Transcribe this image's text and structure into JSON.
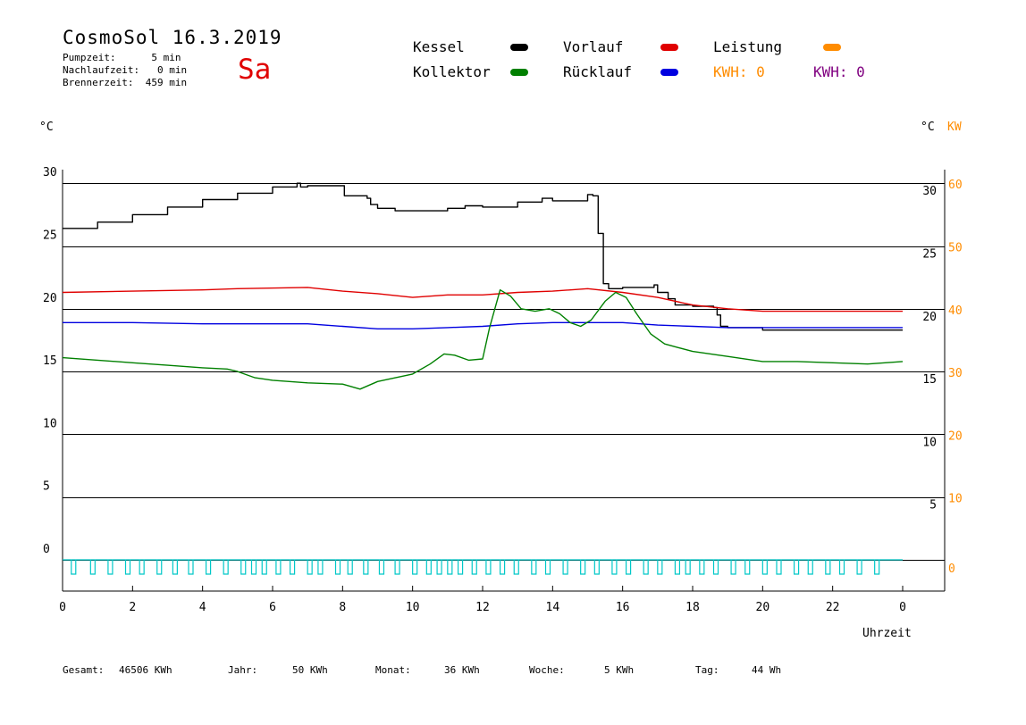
{
  "header": {
    "title": "CosmoSol 16.3.2019",
    "weekday": "Sa",
    "pumpzeit": "Pumpzeit:      5 min",
    "nachlaufzeit": "Nachlaufzeit:   0 min",
    "brennerzeit": "Brennerzeit:  459 min"
  },
  "legend": {
    "kessel": "Kessel",
    "kollektor": "Kollektor",
    "vorlauf": "Vorlauf",
    "ruecklauf": "Rücklauf",
    "leistung": "Leistung",
    "kwh1": "KWH: 0",
    "kwh2": "KWH: 0",
    "colors": {
      "kessel": "#000000",
      "kollektor": "#008000",
      "vorlauf": "#e00000",
      "ruecklauf": "#0000e0",
      "leistung": "#ff8c00",
      "kwh1": "#ff8c00",
      "kwh2": "#800080",
      "pump": "#00c8c8"
    }
  },
  "axes": {
    "left_unit": "°C",
    "right_unit": "°C",
    "right_unit2": "KW",
    "xlabel": "Uhrzeit"
  },
  "footer": {
    "gesamt_label": "Gesamt:",
    "gesamt_value": "46506 KWh",
    "jahr_label": "Jahr:",
    "jahr_value": "50 KWh",
    "monat_label": "Monat:",
    "monat_value": "36 KWh",
    "woche_label": "Woche:",
    "woche_value": "5 KWh",
    "tag_label": "Tag:",
    "tag_value": "44 Wh"
  },
  "chart_data": {
    "type": "line",
    "xlabel": "Uhrzeit",
    "ylabel": "°C",
    "xlim": [
      0,
      24
    ],
    "ylim": [
      0,
      30
    ],
    "y2lim": [
      0,
      60
    ],
    "y2label": "KW",
    "x_ticks": [
      "0",
      "2",
      "4",
      "6",
      "8",
      "10",
      "12",
      "14",
      "16",
      "18",
      "20",
      "22",
      "0"
    ],
    "y_ticks_left": [
      "0",
      "5",
      "10",
      "15",
      "20",
      "25",
      "30"
    ],
    "y_ticks_right": [
      "5",
      "10",
      "15",
      "20",
      "25",
      "30"
    ],
    "y2_ticks": [
      "0",
      "10",
      "20",
      "30",
      "40",
      "50",
      "60"
    ],
    "grid": true,
    "series": [
      {
        "name": "Kessel",
        "color": "#000000",
        "step": true,
        "points": [
          [
            0,
            26.4
          ],
          [
            1,
            26.9
          ],
          [
            2,
            27.5
          ],
          [
            3,
            28.1
          ],
          [
            4,
            28.7
          ],
          [
            5,
            29.2
          ],
          [
            6,
            29.7
          ],
          [
            6.7,
            30.0
          ],
          [
            6.8,
            29.7
          ],
          [
            7,
            29.8
          ],
          [
            8,
            29.8
          ],
          [
            8.05,
            29.0
          ],
          [
            8.7,
            28.8
          ],
          [
            8.8,
            28.3
          ],
          [
            9,
            28.0
          ],
          [
            9.5,
            27.8
          ],
          [
            10,
            27.8
          ],
          [
            11,
            28.0
          ],
          [
            11.5,
            28.2
          ],
          [
            12,
            28.1
          ],
          [
            13,
            28.5
          ],
          [
            13.7,
            28.8
          ],
          [
            14,
            28.6
          ],
          [
            15,
            29.1
          ],
          [
            15.15,
            29.0
          ],
          [
            15.3,
            26.0
          ],
          [
            15.45,
            22.0
          ],
          [
            15.6,
            21.6
          ],
          [
            16,
            21.7
          ],
          [
            16.9,
            21.9
          ],
          [
            17.0,
            21.3
          ],
          [
            17.3,
            20.8
          ],
          [
            17.5,
            20.3
          ],
          [
            18,
            20.2
          ],
          [
            18.6,
            20.1
          ],
          [
            18.7,
            19.5
          ],
          [
            18.8,
            18.6
          ],
          [
            19,
            18.5
          ],
          [
            19.9,
            18.5
          ],
          [
            20,
            18.3
          ],
          [
            24,
            18.3
          ]
        ]
      },
      {
        "name": "Vorlauf",
        "color": "#e00000",
        "points": [
          [
            0,
            21.3
          ],
          [
            2,
            21.4
          ],
          [
            4,
            21.5
          ],
          [
            5,
            21.6
          ],
          [
            7,
            21.7
          ],
          [
            8,
            21.4
          ],
          [
            9,
            21.2
          ],
          [
            10,
            20.9
          ],
          [
            11,
            21.1
          ],
          [
            12,
            21.1
          ],
          [
            13,
            21.3
          ],
          [
            14,
            21.4
          ],
          [
            15,
            21.6
          ],
          [
            16,
            21.3
          ],
          [
            17,
            20.9
          ],
          [
            18,
            20.3
          ],
          [
            19,
            20.0
          ],
          [
            20,
            19.8
          ],
          [
            22,
            19.8
          ],
          [
            24,
            19.8
          ]
        ]
      },
      {
        "name": "Rücklauf",
        "color": "#0000e0",
        "points": [
          [
            0,
            18.9
          ],
          [
            2,
            18.9
          ],
          [
            4,
            18.8
          ],
          [
            6,
            18.8
          ],
          [
            7,
            18.8
          ],
          [
            8,
            18.6
          ],
          [
            9,
            18.4
          ],
          [
            10,
            18.4
          ],
          [
            11,
            18.5
          ],
          [
            12,
            18.6
          ],
          [
            13,
            18.8
          ],
          [
            14,
            18.9
          ],
          [
            15,
            18.9
          ],
          [
            16,
            18.9
          ],
          [
            17,
            18.7
          ],
          [
            18,
            18.6
          ],
          [
            19,
            18.5
          ],
          [
            20,
            18.5
          ],
          [
            22,
            18.5
          ],
          [
            24,
            18.5
          ]
        ]
      },
      {
        "name": "Kollektor",
        "color": "#008000",
        "points": [
          [
            0,
            16.1
          ],
          [
            1,
            15.9
          ],
          [
            2,
            15.7
          ],
          [
            3,
            15.5
          ],
          [
            4,
            15.3
          ],
          [
            4.7,
            15.2
          ],
          [
            5,
            15.0
          ],
          [
            5.5,
            14.5
          ],
          [
            6,
            14.3
          ],
          [
            7,
            14.1
          ],
          [
            8,
            14.0
          ],
          [
            8.5,
            13.6
          ],
          [
            9,
            14.2
          ],
          [
            10,
            14.8
          ],
          [
            10.5,
            15.6
          ],
          [
            10.9,
            16.4
          ],
          [
            11.2,
            16.3
          ],
          [
            11.6,
            15.9
          ],
          [
            12,
            16.0
          ],
          [
            12.2,
            18.5
          ],
          [
            12.5,
            21.5
          ],
          [
            12.8,
            21.0
          ],
          [
            13.1,
            20.0
          ],
          [
            13.5,
            19.8
          ],
          [
            13.9,
            20.0
          ],
          [
            14.2,
            19.6
          ],
          [
            14.5,
            18.9
          ],
          [
            14.8,
            18.6
          ],
          [
            15.1,
            19.1
          ],
          [
            15.5,
            20.6
          ],
          [
            15.8,
            21.3
          ],
          [
            16.1,
            20.9
          ],
          [
            16.4,
            19.6
          ],
          [
            16.8,
            18.0
          ],
          [
            17.2,
            17.2
          ],
          [
            17.6,
            16.9
          ],
          [
            18,
            16.6
          ],
          [
            19,
            16.2
          ],
          [
            20,
            15.8
          ],
          [
            21,
            15.8
          ],
          [
            22,
            15.7
          ],
          [
            23,
            15.6
          ],
          [
            24,
            15.8
          ]
        ]
      }
    ],
    "pump_pulses": [
      0.25,
      0.8,
      1.3,
      1.8,
      2.2,
      2.7,
      3.15,
      3.6,
      4.1,
      4.6,
      5.1,
      5.4,
      5.7,
      6.1,
      6.5,
      7.0,
      7.3,
      7.8,
      8.15,
      8.6,
      9.05,
      9.5,
      10.0,
      10.4,
      10.7,
      11.0,
      11.3,
      11.7,
      12.1,
      12.5,
      12.9,
      13.4,
      13.8,
      14.3,
      14.8,
      15.2,
      15.7,
      16.1,
      16.6,
      17.0,
      17.5,
      17.8,
      18.2,
      18.6,
      19.1,
      19.5,
      20.0,
      20.4,
      20.9,
      21.3,
      21.8,
      22.2,
      22.7,
      23.2
    ]
  }
}
